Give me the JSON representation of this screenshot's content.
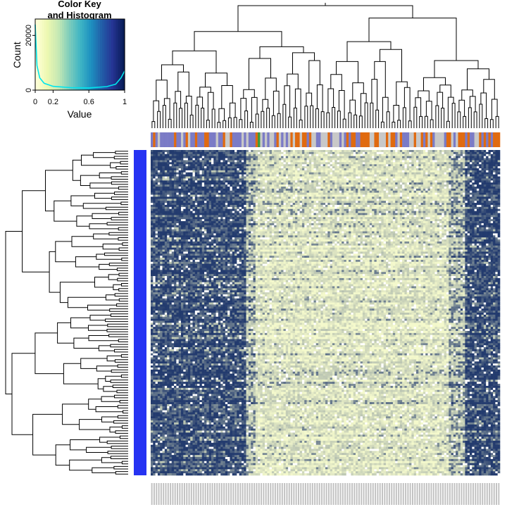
{
  "chart_data": {
    "type": "heatmap",
    "color_key": {
      "title_line1": "Color Key",
      "title_line2": "and Histogram",
      "xlabel": "Value",
      "ylabel": "Count",
      "x_ticks": [
        "0",
        "0.2",
        "0.6",
        "1"
      ],
      "y_ticks": [
        "0",
        "20000"
      ],
      "xlim": [
        0,
        1
      ],
      "colors": [
        "#FFFFD9",
        "#EDF8B1",
        "#C7E9B4",
        "#7FCDBB",
        "#41B6C4",
        "#1D91C0",
        "#225EA8",
        "#253494",
        "#081D58"
      ],
      "histogram_color": "#00E5EE",
      "histogram_profile": [
        {
          "x": 0.0,
          "count": 24000
        },
        {
          "x": 0.02,
          "count": 9000
        },
        {
          "x": 0.05,
          "count": 4500
        },
        {
          "x": 0.1,
          "count": 2500
        },
        {
          "x": 0.2,
          "count": 1400
        },
        {
          "x": 0.4,
          "count": 900
        },
        {
          "x": 0.6,
          "count": 800
        },
        {
          "x": 0.8,
          "count": 1300
        },
        {
          "x": 0.9,
          "count": 2200
        },
        {
          "x": 0.96,
          "count": 4500
        },
        {
          "x": 1.0,
          "count": 7000
        }
      ]
    },
    "heatmap": {
      "row_side_color": "#2633F2",
      "column_side_colors": [
        "#7B7BC6",
        "#E06A10",
        "#C8C8C8",
        "#3A9A3A"
      ],
      "low_color": "#F4F9CC",
      "high_color": "#233B6E",
      "missing_color": "#FFFFFF",
      "column_blocks": [
        {
          "from": 0.0,
          "to": 0.27,
          "level": 0.8
        },
        {
          "from": 0.27,
          "to": 0.3,
          "level": 0.45
        },
        {
          "from": 0.3,
          "to": 0.85,
          "level": 0.22
        },
        {
          "from": 0.85,
          "to": 0.9,
          "level": 0.45
        },
        {
          "from": 0.9,
          "to": 1.0,
          "level": 0.82
        }
      ]
    },
    "column_labels_note": ""
  }
}
